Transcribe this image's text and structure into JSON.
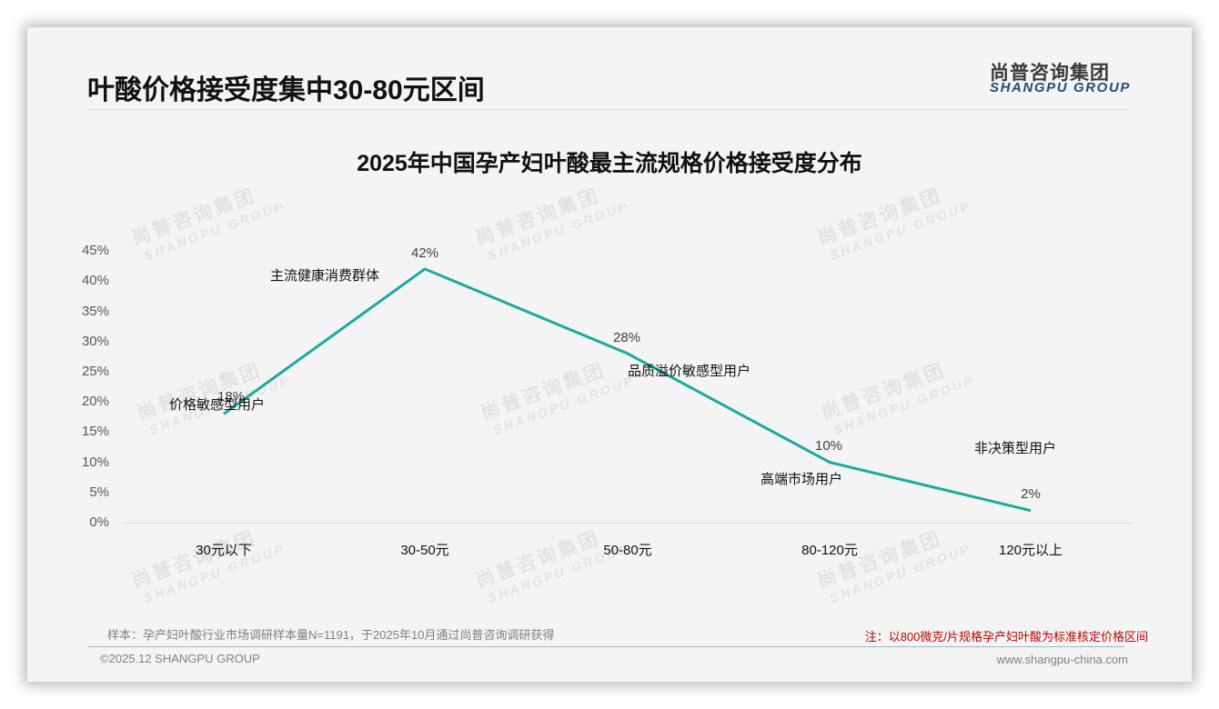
{
  "header": {
    "page_title": "叶酸价格接受度集中30-80元区间",
    "logo_cn": "尚普咨询集团",
    "logo_en": "SHANGPU GROUP"
  },
  "watermark": {
    "cn": "尚普咨询集团",
    "en": "SHANGPU GROUP"
  },
  "chart_data": {
    "type": "line",
    "title": "2025年中国孕产妇叶酸最主流规格价格接受度分布",
    "xlabel": "",
    "ylabel": "",
    "categories": [
      "30元以下",
      "30-50元",
      "50-80元",
      "80-120元",
      "120元以上"
    ],
    "values": [
      18,
      42,
      28,
      10,
      2
    ],
    "value_labels": [
      "18%",
      "42%",
      "28%",
      "10%",
      "2%"
    ],
    "segment_labels": [
      "价格敏感型用户",
      "主流健康消费群体",
      "品质溢价敏感型用户",
      "高端市场用户",
      "非决策型用户"
    ],
    "y_ticks": [
      "0%",
      "5%",
      "10%",
      "15%",
      "20%",
      "25%",
      "30%",
      "35%",
      "40%",
      "45%"
    ],
    "ylim": [
      0,
      45
    ],
    "grid": false,
    "legend": "none",
    "line_color": "#1aaaa2"
  },
  "footer": {
    "sample_note": "样本：孕产妇叶酸行业市场调研样本量N=1191，于2025年10月通过尚普咨询调研获得",
    "spec_note": "注：以800微克/片规格孕产妇叶酸为标准核定价格区间",
    "copyright": "©2025.12 SHANGPU GROUP",
    "website": "www.shangpu-china.com"
  }
}
